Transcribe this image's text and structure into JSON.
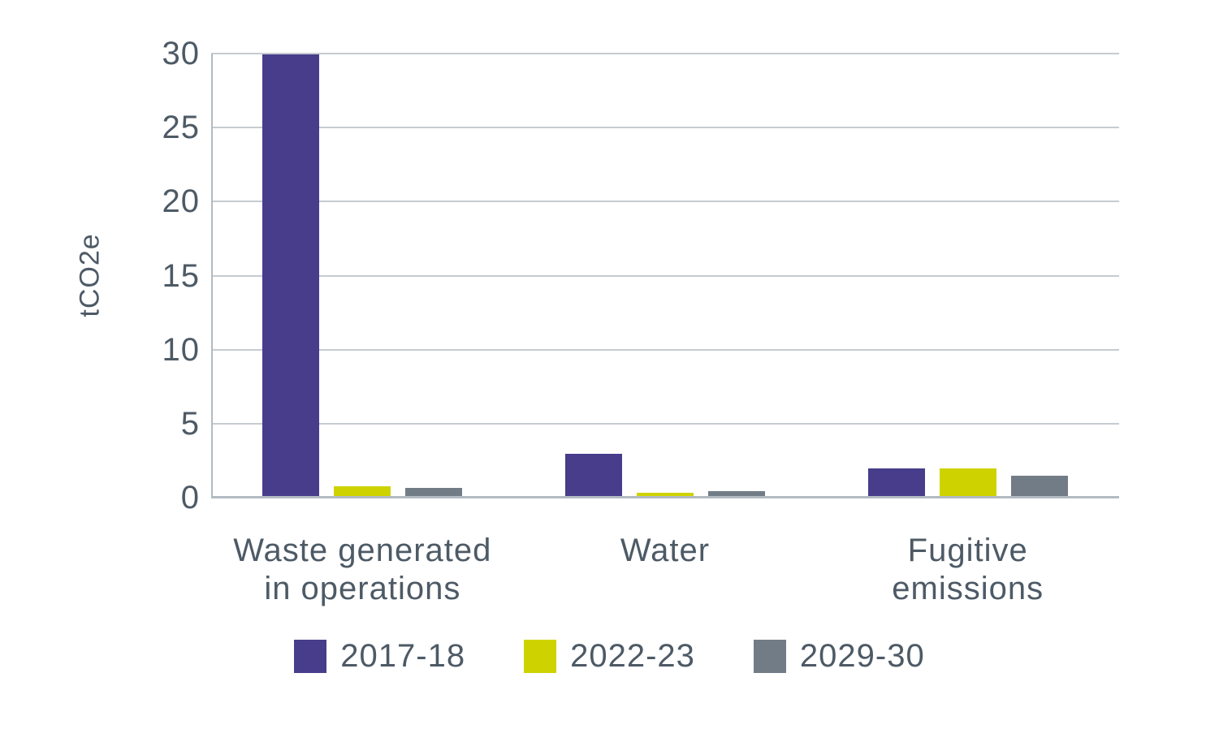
{
  "chart_data": {
    "type": "bar",
    "title": "",
    "xlabel": "",
    "ylabel": "tCO2e",
    "ylim": [
      0,
      30
    ],
    "yticks": [
      30,
      25,
      20,
      15,
      10,
      5,
      0
    ],
    "grid": "horizontal",
    "legend_position": "bottom",
    "categories": [
      "Waste generated\nin operations",
      "Water",
      "Fugitive\nemissions"
    ],
    "series": [
      {
        "name": "2017-18",
        "color": "#473D8B",
        "values": [
          29.9,
          2.9,
          1.9
        ]
      },
      {
        "name": "2022-23",
        "color": "#CED300",
        "values": [
          0.7,
          0.3,
          1.9
        ]
      },
      {
        "name": "2029-30",
        "color": "#727C86",
        "values": [
          0.6,
          0.4,
          1.4
        ]
      }
    ]
  },
  "colors": {
    "text": "#4D5A66",
    "gridline": "#C5CBD1",
    "axis_line": "#B3BBC2",
    "background": "#FFFFFF"
  }
}
